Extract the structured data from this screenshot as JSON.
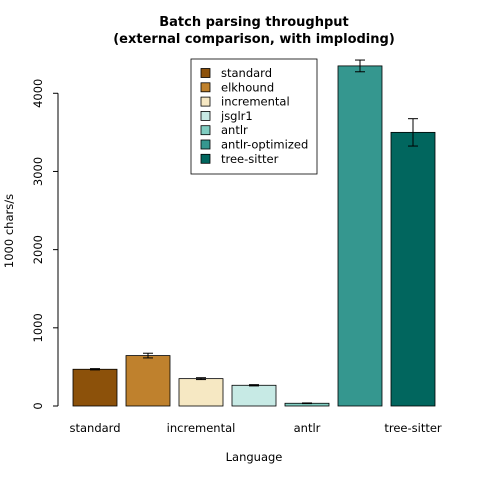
{
  "chart_data": {
    "type": "bar",
    "title": "Batch parsing throughput",
    "subtitle": "(external comparison, with imploding)",
    "xlabel": "Language",
    "ylabel": "1000 chars/s",
    "ylim": [
      0,
      4400
    ],
    "yticks": [
      0,
      1000,
      2000,
      3000,
      4000
    ],
    "grid": false,
    "legend_position": "top-center",
    "categories": [
      "standard",
      "elkhound",
      "incremental",
      "jsglr1",
      "antlr",
      "antlr-optimized",
      "tree-sitter"
    ],
    "visible_xtick_labels": [
      "standard",
      "incremental",
      "antlr",
      "tree-sitter"
    ],
    "values": [
      470,
      645,
      350,
      265,
      35,
      4350,
      3500
    ],
    "errors": [
      8,
      30,
      12,
      8,
      4,
      75,
      175
    ],
    "colors": [
      "#8c510a",
      "#bf812d",
      "#f6e8c3",
      "#c7eae5",
      "#80cdc1",
      "#35978f",
      "#01665e"
    ]
  }
}
